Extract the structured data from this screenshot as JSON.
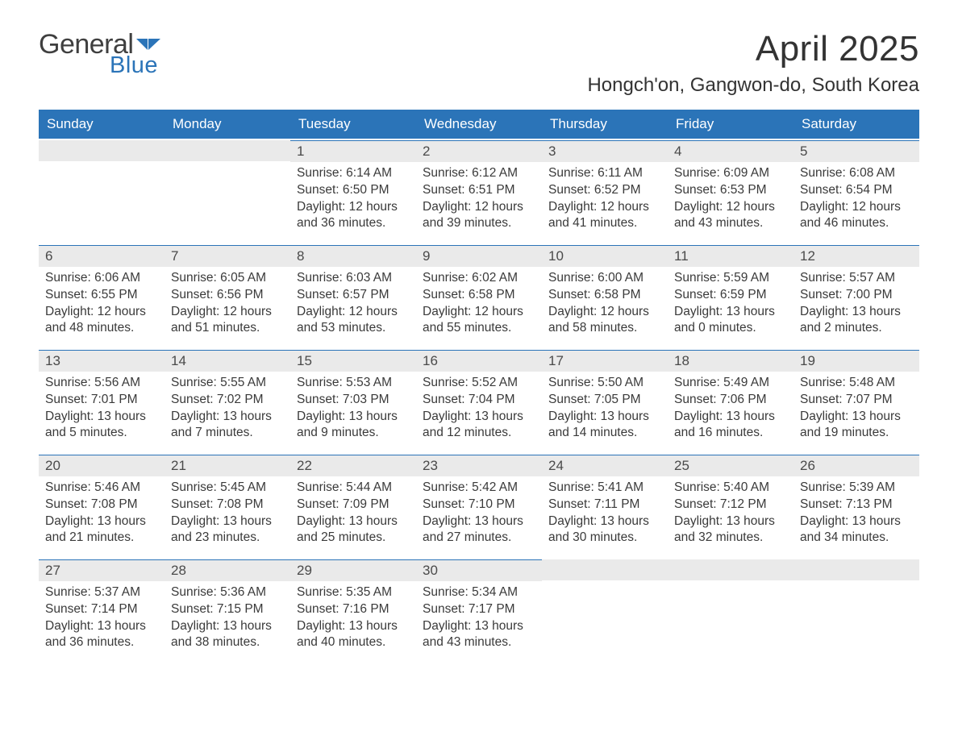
{
  "logo": {
    "word1": "General",
    "word2": "Blue"
  },
  "title": "April 2025",
  "location": "Hongch'on, Gangwon-do, South Korea",
  "colors": {
    "header_bar": "#2b74b8",
    "cell_border": "#2b74b8",
    "daynum_bg": "#eaeaea",
    "text": "#3a3a3a",
    "logo_gray": "#3f3f3f",
    "logo_blue": "#2b74b8",
    "background": "#ffffff"
  },
  "weekdays": [
    "Sunday",
    "Monday",
    "Tuesday",
    "Wednesday",
    "Thursday",
    "Friday",
    "Saturday"
  ],
  "weeks": [
    [
      {
        "day": "",
        "sunrise": "",
        "sunset": "",
        "daylight1": "",
        "daylight2": ""
      },
      {
        "day": "",
        "sunrise": "",
        "sunset": "",
        "daylight1": "",
        "daylight2": ""
      },
      {
        "day": "1",
        "sunrise": "Sunrise: 6:14 AM",
        "sunset": "Sunset: 6:50 PM",
        "daylight1": "Daylight: 12 hours",
        "daylight2": "and 36 minutes."
      },
      {
        "day": "2",
        "sunrise": "Sunrise: 6:12 AM",
        "sunset": "Sunset: 6:51 PM",
        "daylight1": "Daylight: 12 hours",
        "daylight2": "and 39 minutes."
      },
      {
        "day": "3",
        "sunrise": "Sunrise: 6:11 AM",
        "sunset": "Sunset: 6:52 PM",
        "daylight1": "Daylight: 12 hours",
        "daylight2": "and 41 minutes."
      },
      {
        "day": "4",
        "sunrise": "Sunrise: 6:09 AM",
        "sunset": "Sunset: 6:53 PM",
        "daylight1": "Daylight: 12 hours",
        "daylight2": "and 43 minutes."
      },
      {
        "day": "5",
        "sunrise": "Sunrise: 6:08 AM",
        "sunset": "Sunset: 6:54 PM",
        "daylight1": "Daylight: 12 hours",
        "daylight2": "and 46 minutes."
      }
    ],
    [
      {
        "day": "6",
        "sunrise": "Sunrise: 6:06 AM",
        "sunset": "Sunset: 6:55 PM",
        "daylight1": "Daylight: 12 hours",
        "daylight2": "and 48 minutes."
      },
      {
        "day": "7",
        "sunrise": "Sunrise: 6:05 AM",
        "sunset": "Sunset: 6:56 PM",
        "daylight1": "Daylight: 12 hours",
        "daylight2": "and 51 minutes."
      },
      {
        "day": "8",
        "sunrise": "Sunrise: 6:03 AM",
        "sunset": "Sunset: 6:57 PM",
        "daylight1": "Daylight: 12 hours",
        "daylight2": "and 53 minutes."
      },
      {
        "day": "9",
        "sunrise": "Sunrise: 6:02 AM",
        "sunset": "Sunset: 6:58 PM",
        "daylight1": "Daylight: 12 hours",
        "daylight2": "and 55 minutes."
      },
      {
        "day": "10",
        "sunrise": "Sunrise: 6:00 AM",
        "sunset": "Sunset: 6:58 PM",
        "daylight1": "Daylight: 12 hours",
        "daylight2": "and 58 minutes."
      },
      {
        "day": "11",
        "sunrise": "Sunrise: 5:59 AM",
        "sunset": "Sunset: 6:59 PM",
        "daylight1": "Daylight: 13 hours",
        "daylight2": "and 0 minutes."
      },
      {
        "day": "12",
        "sunrise": "Sunrise: 5:57 AM",
        "sunset": "Sunset: 7:00 PM",
        "daylight1": "Daylight: 13 hours",
        "daylight2": "and 2 minutes."
      }
    ],
    [
      {
        "day": "13",
        "sunrise": "Sunrise: 5:56 AM",
        "sunset": "Sunset: 7:01 PM",
        "daylight1": "Daylight: 13 hours",
        "daylight2": "and 5 minutes."
      },
      {
        "day": "14",
        "sunrise": "Sunrise: 5:55 AM",
        "sunset": "Sunset: 7:02 PM",
        "daylight1": "Daylight: 13 hours",
        "daylight2": "and 7 minutes."
      },
      {
        "day": "15",
        "sunrise": "Sunrise: 5:53 AM",
        "sunset": "Sunset: 7:03 PM",
        "daylight1": "Daylight: 13 hours",
        "daylight2": "and 9 minutes."
      },
      {
        "day": "16",
        "sunrise": "Sunrise: 5:52 AM",
        "sunset": "Sunset: 7:04 PM",
        "daylight1": "Daylight: 13 hours",
        "daylight2": "and 12 minutes."
      },
      {
        "day": "17",
        "sunrise": "Sunrise: 5:50 AM",
        "sunset": "Sunset: 7:05 PM",
        "daylight1": "Daylight: 13 hours",
        "daylight2": "and 14 minutes."
      },
      {
        "day": "18",
        "sunrise": "Sunrise: 5:49 AM",
        "sunset": "Sunset: 7:06 PM",
        "daylight1": "Daylight: 13 hours",
        "daylight2": "and 16 minutes."
      },
      {
        "day": "19",
        "sunrise": "Sunrise: 5:48 AM",
        "sunset": "Sunset: 7:07 PM",
        "daylight1": "Daylight: 13 hours",
        "daylight2": "and 19 minutes."
      }
    ],
    [
      {
        "day": "20",
        "sunrise": "Sunrise: 5:46 AM",
        "sunset": "Sunset: 7:08 PM",
        "daylight1": "Daylight: 13 hours",
        "daylight2": "and 21 minutes."
      },
      {
        "day": "21",
        "sunrise": "Sunrise: 5:45 AM",
        "sunset": "Sunset: 7:08 PM",
        "daylight1": "Daylight: 13 hours",
        "daylight2": "and 23 minutes."
      },
      {
        "day": "22",
        "sunrise": "Sunrise: 5:44 AM",
        "sunset": "Sunset: 7:09 PM",
        "daylight1": "Daylight: 13 hours",
        "daylight2": "and 25 minutes."
      },
      {
        "day": "23",
        "sunrise": "Sunrise: 5:42 AM",
        "sunset": "Sunset: 7:10 PM",
        "daylight1": "Daylight: 13 hours",
        "daylight2": "and 27 minutes."
      },
      {
        "day": "24",
        "sunrise": "Sunrise: 5:41 AM",
        "sunset": "Sunset: 7:11 PM",
        "daylight1": "Daylight: 13 hours",
        "daylight2": "and 30 minutes."
      },
      {
        "day": "25",
        "sunrise": "Sunrise: 5:40 AM",
        "sunset": "Sunset: 7:12 PM",
        "daylight1": "Daylight: 13 hours",
        "daylight2": "and 32 minutes."
      },
      {
        "day": "26",
        "sunrise": "Sunrise: 5:39 AM",
        "sunset": "Sunset: 7:13 PM",
        "daylight1": "Daylight: 13 hours",
        "daylight2": "and 34 minutes."
      }
    ],
    [
      {
        "day": "27",
        "sunrise": "Sunrise: 5:37 AM",
        "sunset": "Sunset: 7:14 PM",
        "daylight1": "Daylight: 13 hours",
        "daylight2": "and 36 minutes."
      },
      {
        "day": "28",
        "sunrise": "Sunrise: 5:36 AM",
        "sunset": "Sunset: 7:15 PM",
        "daylight1": "Daylight: 13 hours",
        "daylight2": "and 38 minutes."
      },
      {
        "day": "29",
        "sunrise": "Sunrise: 5:35 AM",
        "sunset": "Sunset: 7:16 PM",
        "daylight1": "Daylight: 13 hours",
        "daylight2": "and 40 minutes."
      },
      {
        "day": "30",
        "sunrise": "Sunrise: 5:34 AM",
        "sunset": "Sunset: 7:17 PM",
        "daylight1": "Daylight: 13 hours",
        "daylight2": "and 43 minutes."
      },
      {
        "day": "",
        "sunrise": "",
        "sunset": "",
        "daylight1": "",
        "daylight2": ""
      },
      {
        "day": "",
        "sunrise": "",
        "sunset": "",
        "daylight1": "",
        "daylight2": ""
      },
      {
        "day": "",
        "sunrise": "",
        "sunset": "",
        "daylight1": "",
        "daylight2": ""
      }
    ]
  ]
}
